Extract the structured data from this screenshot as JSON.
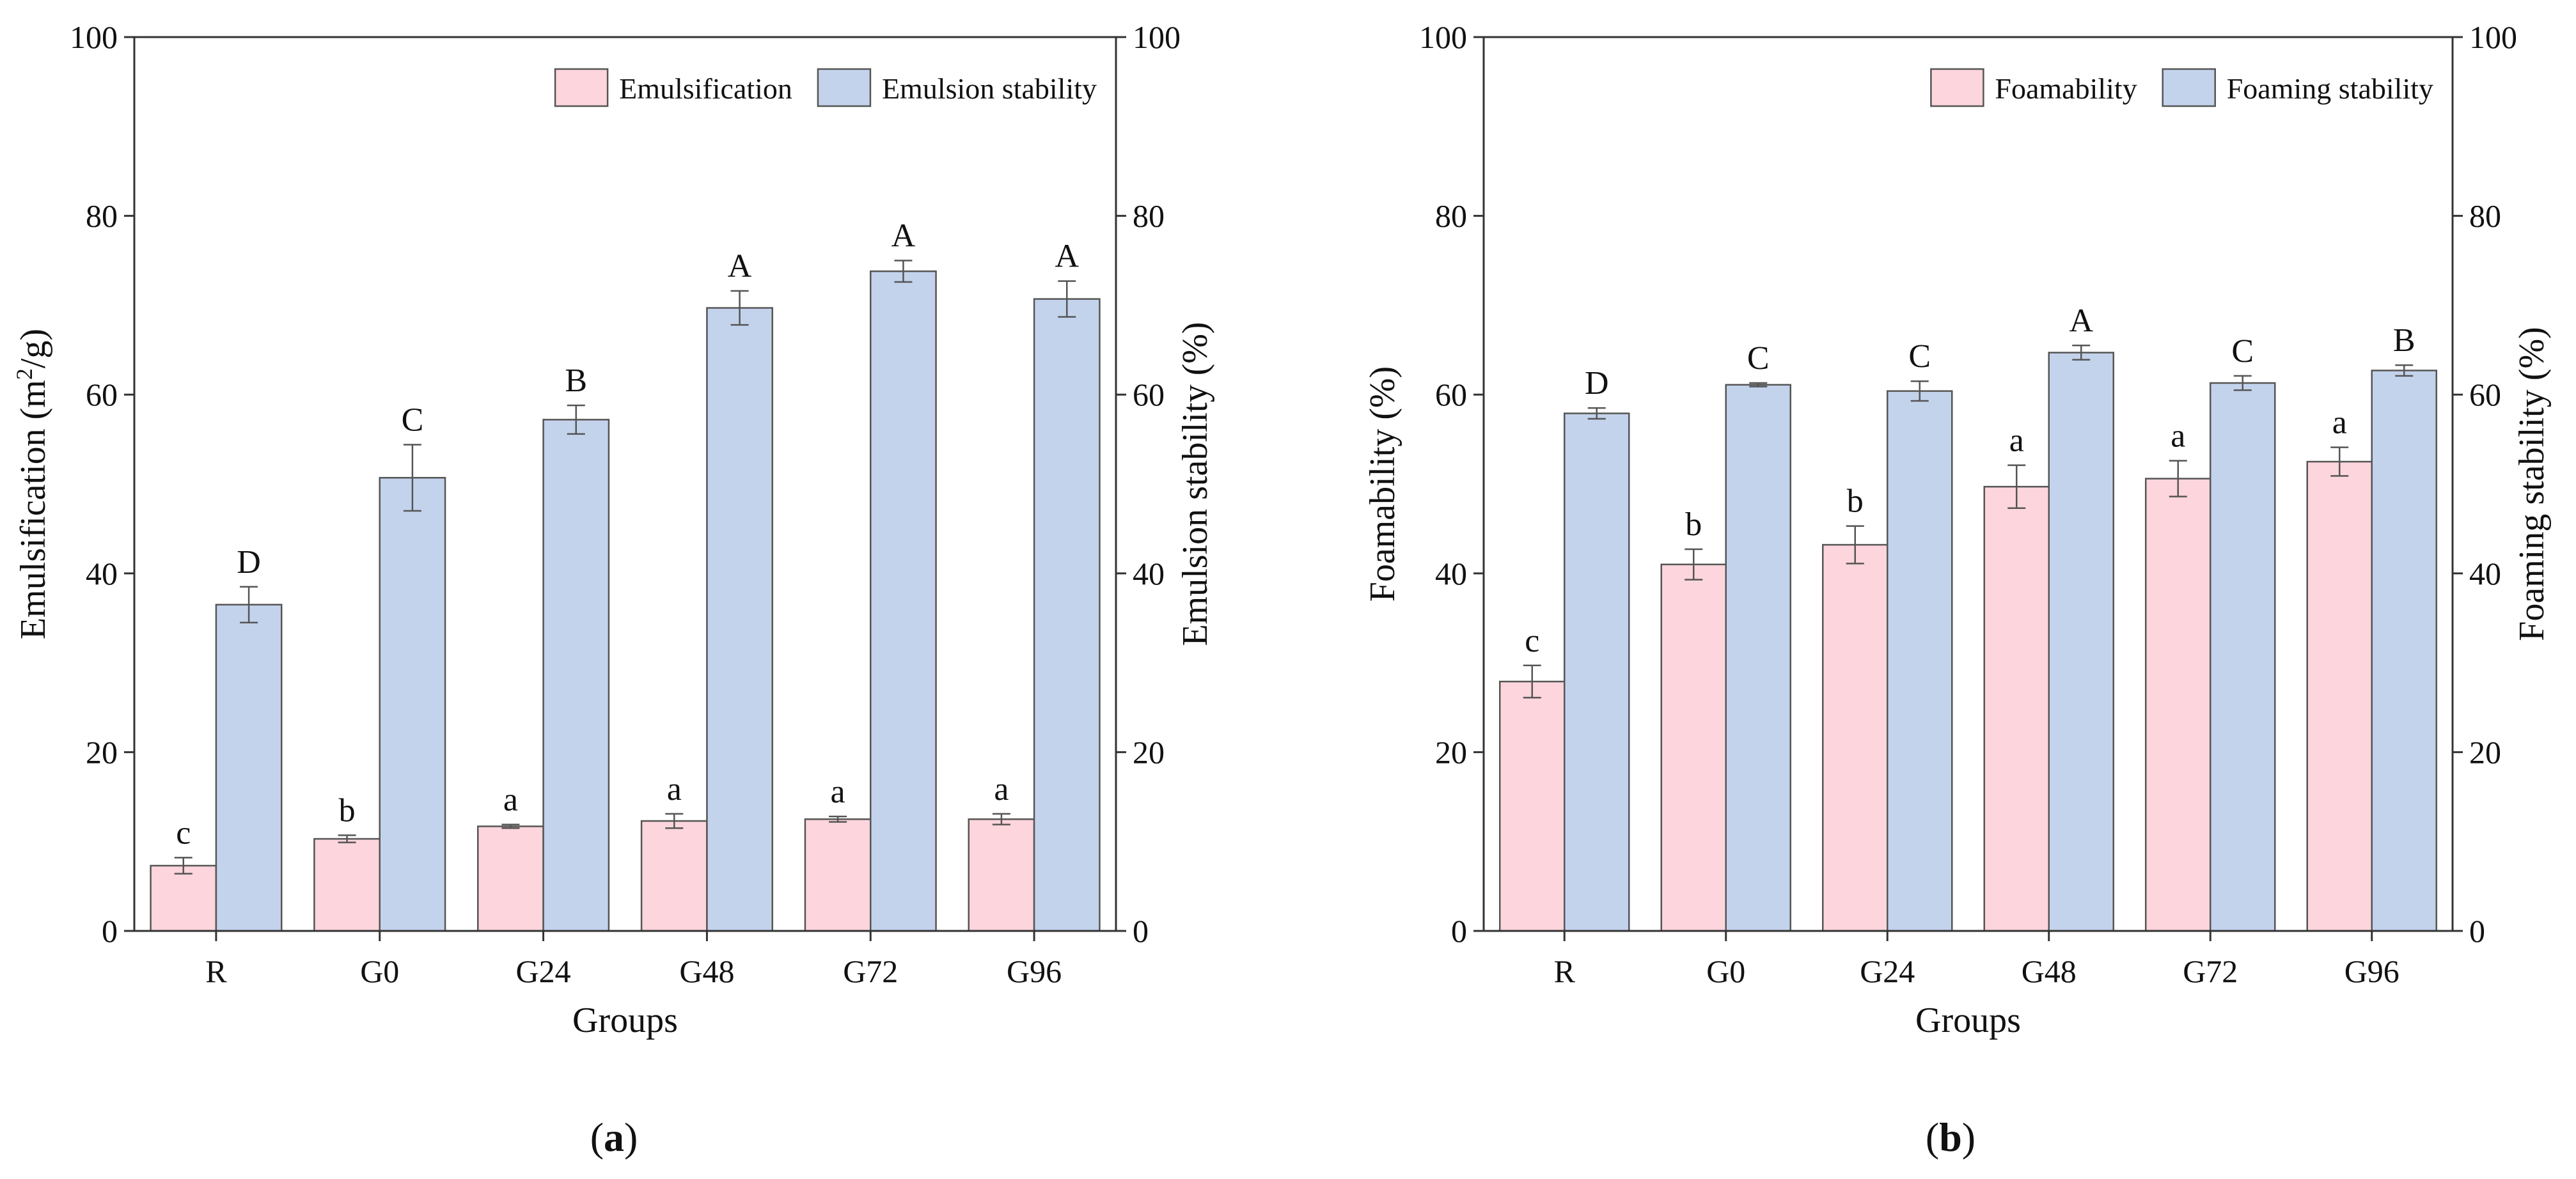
{
  "chart_data": [
    {
      "type": "bar",
      "panel_label": "a",
      "xlabel": "Groups",
      "ylabel_left": "Emulsification (m",
      "ylabel_left_sup": "2",
      "ylabel_left_tail": "/g)",
      "ylabel_right": "Emulsion stability (%)",
      "ylim": [
        0,
        100
      ],
      "yticks": [
        "0",
        "20",
        "40",
        "60",
        "80",
        "100"
      ],
      "categories": [
        "R",
        "G0",
        "G24",
        "G48",
        "G72",
        "G96"
      ],
      "legend_position": "top-right",
      "series": [
        {
          "name": "Emulsification",
          "axis": "left",
          "color": "#fdd5dc",
          "values": [
            7.3,
            10.3,
            11.7,
            12.3,
            12.5,
            12.5
          ],
          "errors": [
            0.9,
            0.4,
            0.2,
            0.8,
            0.3,
            0.6
          ],
          "labels": [
            "c",
            "b",
            "a",
            "a",
            "a",
            "a"
          ]
        },
        {
          "name": "Emulsion stability",
          "axis": "right",
          "color": "#c4d3ec",
          "values": [
            36.5,
            50.7,
            57.2,
            69.7,
            73.8,
            70.7
          ],
          "errors": [
            2.0,
            3.7,
            1.6,
            1.9,
            1.2,
            2.0
          ],
          "labels": [
            "D",
            "C",
            "B",
            "A",
            "A",
            "A"
          ]
        }
      ]
    },
    {
      "type": "bar",
      "panel_label": "b",
      "xlabel": "Groups",
      "ylabel_left": "Foamability (%)",
      "ylabel_right": "Foaming stability (%)",
      "ylim": [
        0,
        100
      ],
      "yticks": [
        "0",
        "20",
        "40",
        "60",
        "80",
        "100"
      ],
      "categories": [
        "R",
        "G0",
        "G24",
        "G48",
        "G72",
        "G96"
      ],
      "legend_position": "top-right",
      "series": [
        {
          "name": "Foamability",
          "axis": "left",
          "color": "#fdd5dc",
          "values": [
            27.9,
            41.0,
            43.2,
            49.7,
            50.6,
            52.5
          ],
          "errors": [
            1.8,
            1.7,
            2.1,
            2.4,
            2.0,
            1.6
          ],
          "labels": [
            "c",
            "b",
            "b",
            "a",
            "a",
            "a"
          ]
        },
        {
          "name": "Foaming stability",
          "axis": "right",
          "color": "#c4d3ec",
          "values": [
            57.9,
            61.1,
            60.4,
            64.7,
            61.3,
            62.7
          ],
          "errors": [
            0.6,
            0.2,
            1.1,
            0.8,
            0.8,
            0.6
          ],
          "labels": [
            "D",
            "C",
            "C",
            "A",
            "C",
            "B"
          ]
        }
      ]
    }
  ]
}
